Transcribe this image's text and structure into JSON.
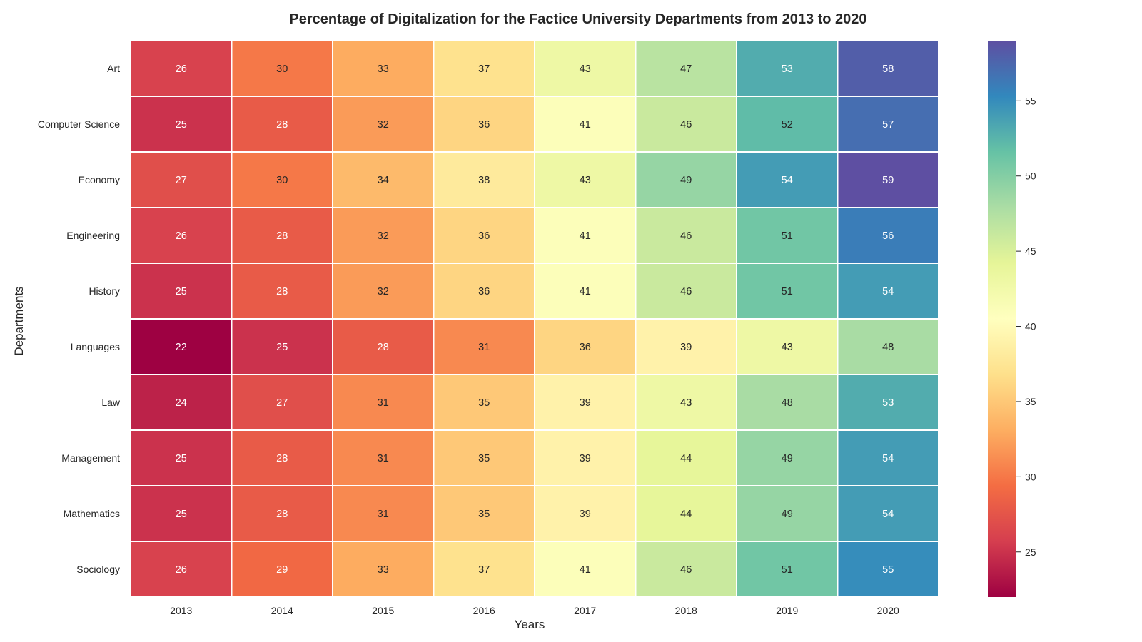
{
  "chart_data": {
    "type": "heatmap",
    "title": "Percentage of Digitalization for the Factice University Departments from 2013 to 2020",
    "xlabel": "Years",
    "ylabel": "Departments",
    "x": [
      "2013",
      "2014",
      "2015",
      "2016",
      "2017",
      "2018",
      "2019",
      "2020"
    ],
    "y": [
      "Art",
      "Computer Science",
      "Economy",
      "Engineering",
      "History",
      "Languages",
      "Law",
      "Management",
      "Mathematics",
      "Sociology"
    ],
    "values": [
      [
        26,
        30,
        33,
        37,
        43,
        47,
        53,
        58
      ],
      [
        25,
        28,
        32,
        36,
        41,
        46,
        52,
        57
      ],
      [
        27,
        30,
        34,
        38,
        43,
        49,
        54,
        59
      ],
      [
        26,
        28,
        32,
        36,
        41,
        46,
        51,
        56
      ],
      [
        25,
        28,
        32,
        36,
        41,
        46,
        51,
        54
      ],
      [
        22,
        25,
        28,
        31,
        36,
        39,
        43,
        48
      ],
      [
        24,
        27,
        31,
        35,
        39,
        43,
        48,
        53
      ],
      [
        25,
        28,
        31,
        35,
        39,
        44,
        49,
        54
      ],
      [
        25,
        28,
        31,
        35,
        39,
        44,
        49,
        54
      ],
      [
        26,
        29,
        33,
        37,
        41,
        46,
        51,
        55
      ]
    ],
    "colormap": "Spectral",
    "vmin": 22,
    "vmax": 59,
    "colorbar_ticks": [
      25,
      30,
      35,
      40,
      45,
      50,
      55
    ],
    "annotations": true,
    "cell_border_color": "#ffffff"
  }
}
